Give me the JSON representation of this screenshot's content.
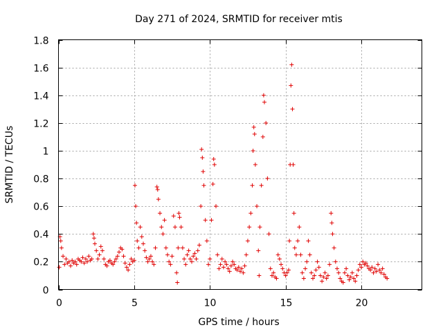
{
  "chart_data": {
    "type": "scatter",
    "title": "Day 271 of 2024, SRMTID for receiver mtis",
    "xlabel": "GPS time / hours",
    "ylabel": "SRMTID / TECUs",
    "xlim": [
      0,
      24
    ],
    "ylim": [
      0,
      1.8
    ],
    "xticks": [
      0,
      5,
      10,
      15,
      20
    ],
    "xtick_labels": [
      "0",
      "5",
      "10",
      "15",
      "20"
    ],
    "yticks": [
      0,
      0.2,
      0.4,
      0.6,
      0.8,
      1.0,
      1.2,
      1.4,
      1.6,
      1.8
    ],
    "ytick_labels": [
      "0",
      "0.2",
      "0.4",
      "0.6",
      "0.8",
      "1",
      "1.2",
      "1.4",
      "1.6",
      "1.8"
    ],
    "grid": true,
    "marker": "plus",
    "marker_color": "#e00000",
    "series": [
      {
        "name": "SRMTID",
        "points": [
          [
            0.05,
            0.16
          ],
          [
            0.1,
            0.38
          ],
          [
            0.15,
            0.35
          ],
          [
            0.2,
            0.3
          ],
          [
            0.3,
            0.24
          ],
          [
            0.4,
            0.18
          ],
          [
            0.5,
            0.22
          ],
          [
            0.6,
            0.19
          ],
          [
            0.7,
            0.2
          ],
          [
            0.8,
            0.17
          ],
          [
            0.9,
            0.21
          ],
          [
            1.0,
            0.19
          ],
          [
            1.1,
            0.2
          ],
          [
            1.2,
            0.18
          ],
          [
            1.3,
            0.22
          ],
          [
            1.4,
            0.21
          ],
          [
            1.5,
            0.2
          ],
          [
            1.6,
            0.23
          ],
          [
            1.7,
            0.19
          ],
          [
            1.8,
            0.22
          ],
          [
            1.9,
            0.2
          ],
          [
            2.0,
            0.24
          ],
          [
            2.1,
            0.21
          ],
          [
            2.2,
            0.22
          ],
          [
            2.3,
            0.4
          ],
          [
            2.35,
            0.37
          ],
          [
            2.4,
            0.33
          ],
          [
            2.5,
            0.28
          ],
          [
            2.6,
            0.22
          ],
          [
            2.7,
            0.25
          ],
          [
            2.8,
            0.31
          ],
          [
            2.9,
            0.28
          ],
          [
            3.0,
            0.22
          ],
          [
            3.1,
            0.18
          ],
          [
            3.2,
            0.17
          ],
          [
            3.3,
            0.2
          ],
          [
            3.4,
            0.21
          ],
          [
            3.5,
            0.19
          ],
          [
            3.6,
            0.18
          ],
          [
            3.7,
            0.2
          ],
          [
            3.8,
            0.22
          ],
          [
            3.9,
            0.24
          ],
          [
            4.0,
            0.27
          ],
          [
            4.1,
            0.3
          ],
          [
            4.2,
            0.29
          ],
          [
            4.3,
            0.24
          ],
          [
            4.4,
            0.19
          ],
          [
            4.5,
            0.16
          ],
          [
            4.6,
            0.14
          ],
          [
            4.7,
            0.18
          ],
          [
            4.8,
            0.22
          ],
          [
            4.9,
            0.2
          ],
          [
            5.0,
            0.21
          ],
          [
            5.05,
            0.75
          ],
          [
            5.1,
            0.6
          ],
          [
            5.15,
            0.48
          ],
          [
            5.2,
            0.35
          ],
          [
            5.3,
            0.3
          ],
          [
            5.4,
            0.45
          ],
          [
            5.5,
            0.38
          ],
          [
            5.6,
            0.33
          ],
          [
            5.7,
            0.28
          ],
          [
            5.8,
            0.23
          ],
          [
            5.9,
            0.2
          ],
          [
            6.0,
            0.22
          ],
          [
            6.1,
            0.24
          ],
          [
            6.2,
            0.2
          ],
          [
            6.3,
            0.18
          ],
          [
            6.4,
            0.3
          ],
          [
            6.5,
            0.74
          ],
          [
            6.55,
            0.72
          ],
          [
            6.6,
            0.65
          ],
          [
            6.7,
            0.55
          ],
          [
            6.8,
            0.45
          ],
          [
            6.9,
            0.4
          ],
          [
            7.0,
            0.5
          ],
          [
            7.1,
            0.3
          ],
          [
            7.2,
            0.25
          ],
          [
            7.3,
            0.2
          ],
          [
            7.4,
            0.18
          ],
          [
            7.5,
            0.24
          ],
          [
            7.6,
            0.53
          ],
          [
            7.7,
            0.45
          ],
          [
            7.8,
            0.12
          ],
          [
            7.85,
            0.05
          ],
          [
            7.9,
            0.3
          ],
          [
            7.95,
            0.55
          ],
          [
            8.0,
            0.52
          ],
          [
            8.1,
            0.45
          ],
          [
            8.2,
            0.3
          ],
          [
            8.3,
            0.22
          ],
          [
            8.4,
            0.18
          ],
          [
            8.5,
            0.25
          ],
          [
            8.6,
            0.28
          ],
          [
            8.7,
            0.22
          ],
          [
            8.8,
            0.2
          ],
          [
            8.9,
            0.24
          ],
          [
            9.0,
            0.26
          ],
          [
            9.1,
            0.22
          ],
          [
            9.2,
            0.28
          ],
          [
            9.3,
            0.32
          ],
          [
            9.4,
            0.6
          ],
          [
            9.45,
            1.01
          ],
          [
            9.5,
            0.95
          ],
          [
            9.55,
            0.85
          ],
          [
            9.6,
            0.75
          ],
          [
            9.7,
            0.5
          ],
          [
            9.8,
            0.35
          ],
          [
            9.9,
            0.18
          ],
          [
            10.0,
            0.22
          ],
          [
            10.1,
            0.5
          ],
          [
            10.2,
            0.76
          ],
          [
            10.25,
            0.94
          ],
          [
            10.3,
            0.9
          ],
          [
            10.4,
            0.6
          ],
          [
            10.5,
            0.25
          ],
          [
            10.6,
            0.15
          ],
          [
            10.7,
            0.18
          ],
          [
            10.8,
            0.22
          ],
          [
            10.9,
            0.16
          ],
          [
            11.0,
            0.2
          ],
          [
            11.1,
            0.18
          ],
          [
            11.2,
            0.15
          ],
          [
            11.3,
            0.13
          ],
          [
            11.4,
            0.17
          ],
          [
            11.5,
            0.2
          ],
          [
            11.6,
            0.18
          ],
          [
            11.7,
            0.15
          ],
          [
            11.8,
            0.14
          ],
          [
            11.9,
            0.16
          ],
          [
            12.0,
            0.13
          ],
          [
            12.1,
            0.15
          ],
          [
            12.2,
            0.12
          ],
          [
            12.3,
            0.17
          ],
          [
            12.4,
            0.25
          ],
          [
            12.5,
            0.35
          ],
          [
            12.6,
            0.45
          ],
          [
            12.7,
            0.55
          ],
          [
            12.8,
            0.75
          ],
          [
            12.85,
            1.0
          ],
          [
            12.9,
            1.17
          ],
          [
            12.95,
            1.12
          ],
          [
            13.0,
            0.9
          ],
          [
            13.1,
            0.6
          ],
          [
            13.2,
            0.28
          ],
          [
            13.25,
            0.1
          ],
          [
            13.3,
            0.45
          ],
          [
            13.4,
            0.75
          ],
          [
            13.5,
            1.1
          ],
          [
            13.55,
            1.4
          ],
          [
            13.6,
            1.35
          ],
          [
            13.7,
            1.2
          ],
          [
            13.8,
            0.8
          ],
          [
            13.9,
            0.4
          ],
          [
            14.0,
            0.15
          ],
          [
            14.1,
            0.1
          ],
          [
            14.2,
            0.12
          ],
          [
            14.3,
            0.09
          ],
          [
            14.4,
            0.08
          ],
          [
            14.5,
            0.25
          ],
          [
            14.6,
            0.22
          ],
          [
            14.7,
            0.18
          ],
          [
            14.8,
            0.15
          ],
          [
            14.9,
            0.12
          ],
          [
            15.0,
            0.1
          ],
          [
            15.1,
            0.12
          ],
          [
            15.2,
            0.14
          ],
          [
            15.25,
            0.35
          ],
          [
            15.3,
            0.9
          ],
          [
            15.35,
            1.47
          ],
          [
            15.4,
            1.62
          ],
          [
            15.45,
            1.3
          ],
          [
            15.5,
            0.9
          ],
          [
            15.55,
            0.55
          ],
          [
            15.6,
            0.3
          ],
          [
            15.7,
            0.25
          ],
          [
            15.8,
            0.35
          ],
          [
            15.9,
            0.45
          ],
          [
            16.0,
            0.25
          ],
          [
            16.1,
            0.12
          ],
          [
            16.2,
            0.08
          ],
          [
            16.3,
            0.15
          ],
          [
            16.4,
            0.2
          ],
          [
            16.5,
            0.35
          ],
          [
            16.6,
            0.25
          ],
          [
            16.7,
            0.12
          ],
          [
            16.8,
            0.08
          ],
          [
            16.9,
            0.1
          ],
          [
            17.0,
            0.14
          ],
          [
            17.1,
            0.2
          ],
          [
            17.2,
            0.16
          ],
          [
            17.3,
            0.1
          ],
          [
            17.4,
            0.06
          ],
          [
            17.5,
            0.09
          ],
          [
            17.6,
            0.12
          ],
          [
            17.7,
            0.08
          ],
          [
            17.8,
            0.1
          ],
          [
            17.9,
            0.18
          ],
          [
            18.0,
            0.55
          ],
          [
            18.05,
            0.48
          ],
          [
            18.1,
            0.4
          ],
          [
            18.2,
            0.3
          ],
          [
            18.3,
            0.2
          ],
          [
            18.4,
            0.15
          ],
          [
            18.5,
            0.12
          ],
          [
            18.6,
            0.08
          ],
          [
            18.7,
            0.06
          ],
          [
            18.8,
            0.05
          ],
          [
            18.9,
            0.12
          ],
          [
            19.0,
            0.15
          ],
          [
            19.1,
            0.1
          ],
          [
            19.2,
            0.07
          ],
          [
            19.3,
            0.09
          ],
          [
            19.4,
            0.12
          ],
          [
            19.5,
            0.08
          ],
          [
            19.6,
            0.06
          ],
          [
            19.7,
            0.1
          ],
          [
            19.8,
            0.14
          ],
          [
            19.9,
            0.18
          ],
          [
            20.0,
            0.16
          ],
          [
            20.1,
            0.2
          ],
          [
            20.2,
            0.18
          ],
          [
            20.3,
            0.19
          ],
          [
            20.4,
            0.17
          ],
          [
            20.5,
            0.15
          ],
          [
            20.6,
            0.14
          ],
          [
            20.7,
            0.16
          ],
          [
            20.8,
            0.12
          ],
          [
            20.9,
            0.15
          ],
          [
            21.0,
            0.13
          ],
          [
            21.1,
            0.18
          ],
          [
            21.2,
            0.14
          ],
          [
            21.3,
            0.12
          ],
          [
            21.4,
            0.15
          ],
          [
            21.5,
            0.11
          ],
          [
            21.6,
            0.09
          ],
          [
            21.7,
            0.08
          ]
        ]
      }
    ]
  }
}
